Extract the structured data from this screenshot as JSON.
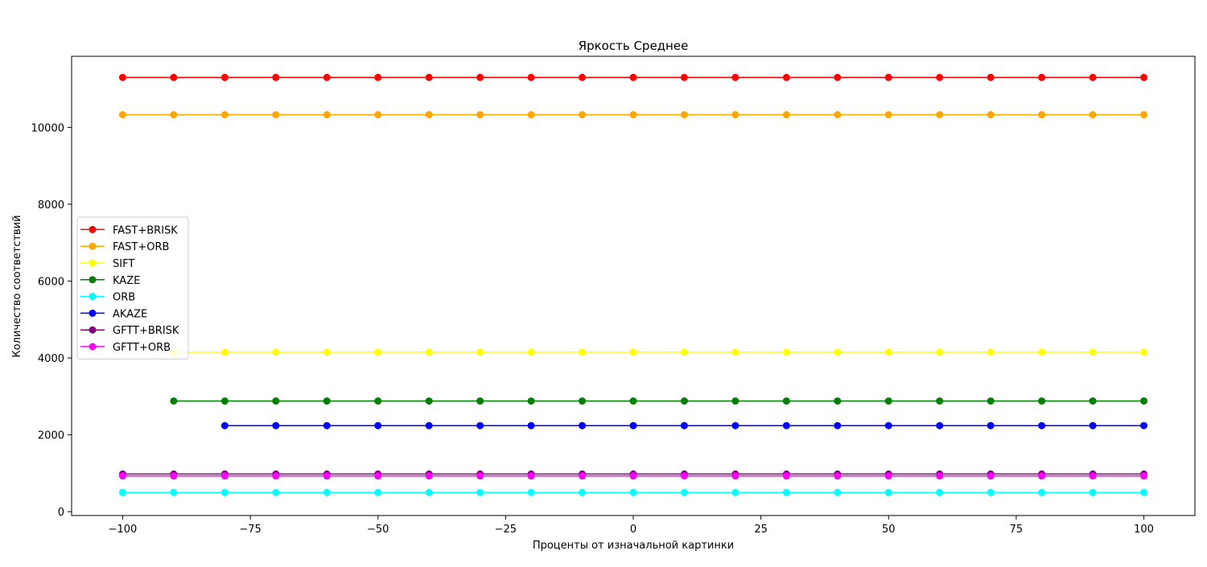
{
  "chart_data": {
    "type": "line",
    "title": "Яркость Среднее",
    "xlabel": "Проценты от изначальной картинки",
    "ylabel": "Количество соответствий",
    "xlim": [
      -110,
      110
    ],
    "ylim": [
      -100,
      11850
    ],
    "x_ticks": [
      -100,
      -75,
      -50,
      -25,
      0,
      25,
      50,
      75,
      100
    ],
    "x_tick_labels": [
      "−100",
      "−75",
      "−50",
      "−25",
      "0",
      "25",
      "50",
      "75",
      "100"
    ],
    "y_ticks": [
      0,
      2000,
      4000,
      6000,
      8000,
      10000
    ],
    "y_tick_labels": [
      "0",
      "2000",
      "4000",
      "6000",
      "8000",
      "10000"
    ],
    "grid": false,
    "legend_position": "center-left",
    "x": [
      -100,
      -90,
      -80,
      -70,
      -60,
      -50,
      -40,
      -30,
      -20,
      -10,
      0,
      10,
      20,
      30,
      40,
      50,
      60,
      70,
      80,
      90,
      100
    ],
    "series": [
      {
        "name": "FAST+BRISK",
        "color": "#ff0000",
        "values": [
          11300,
          11300,
          11300,
          11300,
          11300,
          11300,
          11300,
          11300,
          11300,
          11300,
          11300,
          11300,
          11300,
          11300,
          11300,
          11300,
          11300,
          11300,
          11300,
          11300,
          11300
        ]
      },
      {
        "name": "FAST+ORB",
        "color": "#ffa500",
        "values": [
          10330,
          10330,
          10330,
          10330,
          10330,
          10330,
          10330,
          10330,
          10330,
          10330,
          10330,
          10330,
          10330,
          10330,
          10330,
          10330,
          10330,
          10330,
          10330,
          10330,
          10330
        ]
      },
      {
        "name": "SIFT",
        "color": "#ffff00",
        "values": [
          null,
          4150,
          4150,
          4150,
          4150,
          4150,
          4150,
          4150,
          4150,
          4150,
          4150,
          4150,
          4150,
          4150,
          4150,
          4150,
          4150,
          4150,
          4150,
          4150,
          4150
        ]
      },
      {
        "name": "KAZE",
        "color": "#008000",
        "values": [
          null,
          2880,
          2880,
          2880,
          2880,
          2880,
          2880,
          2880,
          2880,
          2880,
          2880,
          2880,
          2880,
          2880,
          2880,
          2880,
          2880,
          2880,
          2880,
          2880,
          2880
        ]
      },
      {
        "name": "ORB",
        "color": "#00ffff",
        "values": [
          500,
          500,
          500,
          500,
          500,
          500,
          500,
          500,
          500,
          500,
          500,
          500,
          500,
          500,
          500,
          500,
          500,
          500,
          500,
          500,
          500
        ]
      },
      {
        "name": "AKAZE",
        "color": "#0000ff",
        "values": [
          null,
          null,
          2240,
          2240,
          2240,
          2240,
          2240,
          2240,
          2240,
          2240,
          2240,
          2240,
          2240,
          2240,
          2240,
          2240,
          2240,
          2240,
          2240,
          2240,
          2240
        ]
      },
      {
        "name": "GFTT+BRISK",
        "color": "#800080",
        "values": [
          980,
          980,
          980,
          980,
          980,
          980,
          980,
          980,
          980,
          980,
          980,
          980,
          980,
          980,
          980,
          980,
          980,
          980,
          980,
          980,
          980
        ]
      },
      {
        "name": "GFTT+ORB",
        "color": "#ff00ff",
        "values": [
          930,
          930,
          930,
          930,
          930,
          930,
          930,
          930,
          930,
          930,
          930,
          930,
          930,
          930,
          930,
          930,
          930,
          930,
          930,
          930,
          930
        ]
      }
    ]
  }
}
